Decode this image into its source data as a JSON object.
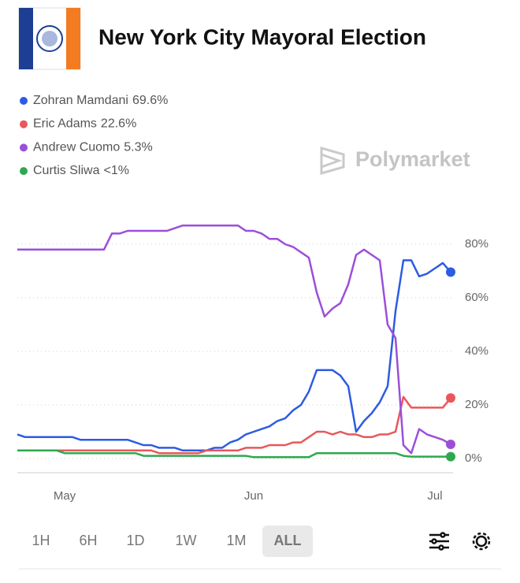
{
  "chart_data": {
    "type": "line",
    "title": "New York City Mayoral Election",
    "watermark": "Polymarket",
    "time_ranges": [
      "1H",
      "6H",
      "1D",
      "1W",
      "1M",
      "ALL"
    ],
    "selected_range": 5,
    "categories": [
      null,
      null,
      null,
      null,
      null,
      null,
      "May",
      null,
      null,
      null,
      null,
      null,
      null,
      null,
      null,
      null,
      null,
      null,
      null,
      null,
      null,
      null,
      null,
      null,
      null,
      null,
      null,
      null,
      null,
      null,
      "Jun",
      null,
      null,
      null,
      null,
      null,
      null,
      null,
      null,
      null,
      null,
      null,
      null,
      null,
      null,
      null,
      null,
      null,
      null,
      null,
      null,
      null,
      null,
      "Jul",
      null,
      null
    ],
    "ylim": [
      -5,
      90
    ],
    "yticks": [
      {
        "value": 0,
        "label": "0%"
      },
      {
        "value": 20,
        "label": "20%"
      },
      {
        "value": 40,
        "label": "40%"
      },
      {
        "value": 60,
        "label": "60%"
      },
      {
        "value": 80,
        "label": "80%"
      }
    ],
    "grid": true,
    "series": [
      {
        "name": "Zohran Mamdani",
        "last_label": "69.6%",
        "color": "#2d5be3",
        "values": [
          9,
          8,
          8,
          8,
          8,
          8,
          8,
          8,
          7,
          7,
          7,
          7,
          7,
          7,
          7,
          6,
          5,
          5,
          4,
          4,
          4,
          3,
          3,
          3,
          3,
          4,
          4,
          6,
          7,
          9,
          10,
          11,
          12,
          14,
          15,
          18,
          20,
          25,
          33,
          33,
          33,
          31,
          27,
          10,
          14,
          17,
          21,
          27,
          55,
          74,
          74,
          68,
          69,
          71,
          73,
          69.6
        ]
      },
      {
        "name": "Eric Adams",
        "last_label": "22.6%",
        "color": "#e9575a",
        "values": [
          3,
          3,
          3,
          3,
          3,
          3,
          3,
          3,
          3,
          3,
          3,
          3,
          3,
          3,
          3,
          3,
          3,
          3,
          2,
          2,
          2,
          2,
          2,
          2,
          3,
          3,
          3,
          3,
          3,
          4,
          4,
          4,
          5,
          5,
          5,
          6,
          6,
          8,
          10,
          10,
          9,
          10,
          9,
          9,
          8,
          8,
          9,
          9,
          10,
          23,
          19,
          19,
          19,
          19,
          19,
          22.6
        ]
      },
      {
        "name": "Andrew Cuomo",
        "last_label": "5.3%",
        "color": "#9b4fd9",
        "values": [
          78,
          78,
          78,
          78,
          78,
          78,
          78,
          78,
          78,
          78,
          78,
          78,
          84,
          84,
          85,
          85,
          85,
          85,
          85,
          85,
          86,
          87,
          87,
          87,
          87,
          87,
          87,
          87,
          87,
          85,
          85,
          84,
          82,
          82,
          80,
          79,
          77,
          75,
          62,
          53,
          56,
          58,
          65,
          76,
          78,
          76,
          74,
          50,
          45,
          5,
          2,
          11,
          9,
          8,
          7,
          5.3
        ]
      },
      {
        "name": "Curtis Sliwa",
        "last_label": "<1%",
        "color": "#2ea84f",
        "values": [
          3,
          3,
          3,
          3,
          3,
          3,
          2,
          2,
          2,
          2,
          2,
          2,
          2,
          2,
          2,
          2,
          1,
          1,
          1,
          1,
          1,
          1,
          1,
          1,
          1,
          1,
          1,
          1,
          1,
          1,
          0.5,
          0.5,
          0.5,
          0.5,
          0.5,
          0.5,
          0.5,
          0.5,
          2,
          2,
          2,
          2,
          2,
          2,
          2,
          2,
          2,
          2,
          2,
          1,
          0.7,
          0.7,
          0.7,
          0.7,
          0.7,
          0.7
        ]
      }
    ]
  }
}
